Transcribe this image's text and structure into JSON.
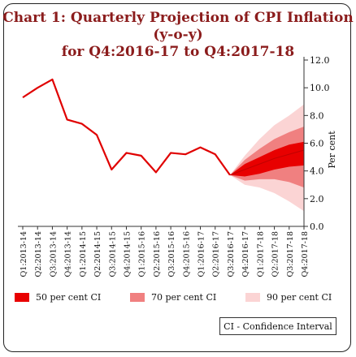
{
  "title_line1": "Chart 1:  Quarterly Projection of CPI Inflation (y-o-y)",
  "title_line2": "for Q4:2016-17 to Q4:2017-18",
  "colors": {
    "title": "#8b1c1c",
    "line": "#e00000",
    "ci50": "#e80000",
    "ci70": "#f08080",
    "ci90": "#fbd4d4"
  },
  "legend": {
    "ci50": "50 per cent CI",
    "ci70": "70 per cent CI",
    "ci90": "90 per cent CI"
  },
  "note": "CI - Confidence Interval",
  "chart_data": {
    "type": "line",
    "title": "Chart 1:  Quarterly Projection of CPI Inflation (y-o-y) for Q4:2016-17 to Q4:2017-18",
    "xlabel": "",
    "ylabel": "Per cent",
    "ylim": [
      0.0,
      12.0
    ],
    "yticks": [
      "0.0",
      "2.0",
      "4.0",
      "6.0",
      "8.0",
      "10.0",
      "12.0"
    ],
    "y_axis_side": "right",
    "grid": false,
    "categories": [
      "Q1:2013-14",
      "Q2:2013-14",
      "Q3:2013-14",
      "Q4:2013-14",
      "Q1:2014-15",
      "Q2:2014-15",
      "Q3:2014-15",
      "Q4:2014-15",
      "Q1:2015-16",
      "Q2:2015-16",
      "Q3:2015-16",
      "Q4:2015-16",
      "Q1:2016-17",
      "Q2:2016-17",
      "Q3:2016-17",
      "Q4:2016-17",
      "Q1:2017-18",
      "Q2:2017-18",
      "Q3:2017-18",
      "Q4:2017-18"
    ],
    "series": [
      {
        "values": [
          9.3,
          10.0,
          10.6,
          7.7,
          7.4,
          6.6,
          4.1,
          5.3,
          5.1,
          3.9,
          5.3,
          5.2,
          5.7,
          5.2,
          3.7,
          null,
          null,
          null,
          null,
          null
        ]
      }
    ],
    "fan": {
      "start_index": 14,
      "center": [
        3.7,
        4.1,
        4.5,
        4.9,
        5.2,
        5.5
      ],
      "ci50": {
        "lower": [
          3.7,
          3.6,
          3.8,
          4.1,
          4.3,
          4.4
        ],
        "upper": [
          3.7,
          4.5,
          5.0,
          5.5,
          5.9,
          6.1
        ]
      },
      "ci70": {
        "lower": [
          3.7,
          3.3,
          3.4,
          3.4,
          3.2,
          2.8
        ],
        "upper": [
          3.7,
          4.8,
          5.6,
          6.3,
          6.8,
          7.2
        ]
      },
      "ci90": {
        "lower": [
          3.7,
          3.0,
          2.8,
          2.4,
          1.8,
          1.1
        ],
        "upper": [
          3.7,
          5.1,
          6.3,
          7.3,
          8.0,
          8.8
        ]
      }
    },
    "legend_position": "bottom"
  }
}
